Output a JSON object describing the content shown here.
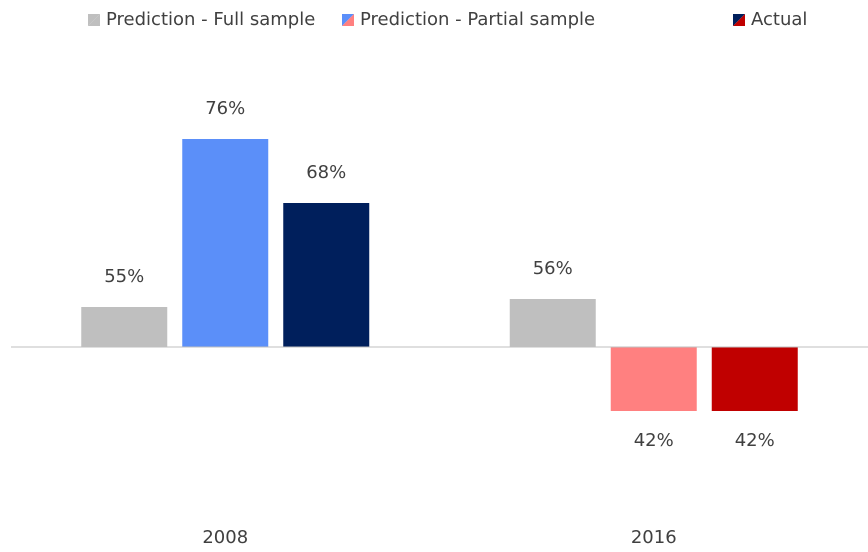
{
  "chart_data": {
    "type": "bar",
    "categories": [
      "2008",
      "2016"
    ],
    "baseline": 50,
    "ylim": [
      35,
      80
    ],
    "series": [
      {
        "name": "Prediction - Full sample",
        "colors": [
          "#bfbfbf",
          "#bfbfbf"
        ],
        "values": [
          55,
          56
        ],
        "value_labels": [
          "55%",
          "56%"
        ]
      },
      {
        "name": "Prediction - Partial sample",
        "colors": [
          "#5b8ff9",
          "#ff8080"
        ],
        "values": [
          76,
          42
        ],
        "value_labels": [
          "76%",
          "42%"
        ]
      },
      {
        "name": "Actual",
        "colors": [
          "#001f5c",
          "#c00000"
        ],
        "values": [
          68,
          42
        ],
        "value_labels": [
          "68%",
          "42%"
        ]
      }
    ]
  }
}
